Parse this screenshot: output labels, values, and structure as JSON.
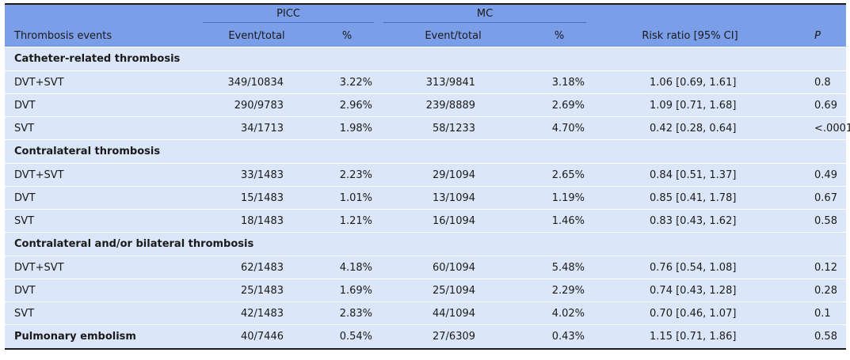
{
  "table": {
    "header": {
      "row_label": "Thrombosis events",
      "group_picc": "PICC",
      "group_mc": "MC",
      "picc_event": "Event/total",
      "picc_pct": "%",
      "mc_event": "Event/total",
      "mc_pct": "%",
      "risk_ratio": "Risk ratio [95% CI]",
      "p": "P"
    },
    "sections": [
      {
        "title": "Catheter-related thrombosis",
        "rows": [
          {
            "label": "DVT+SVT",
            "picc_event": "349/10834",
            "picc_pct": "3.22%",
            "mc_event": "313/9841",
            "mc_pct": "3.18%",
            "rr": "1.06 [0.69, 1.61]",
            "p": "0.8"
          },
          {
            "label": "DVT",
            "picc_event": "290/9783",
            "picc_pct": "2.96%",
            "mc_event": "239/8889",
            "mc_pct": "2.69%",
            "rr": "1.09 [0.71, 1.68]",
            "p": "0.69"
          },
          {
            "label": "SVT",
            "picc_event": "34/1713",
            "picc_pct": "1.98%",
            "mc_event": "58/1233",
            "mc_pct": "4.70%",
            "rr": "0.42 [0.28, 0.64]",
            "p": "<.0001"
          }
        ]
      },
      {
        "title": "Contralateral thrombosis",
        "rows": [
          {
            "label": "DVT+SVT",
            "picc_event": "33/1483",
            "picc_pct": "2.23%",
            "mc_event": "29/1094",
            "mc_pct": "2.65%",
            "rr": "0.84 [0.51, 1.37]",
            "p": "0.49"
          },
          {
            "label": "DVT",
            "picc_event": "15/1483",
            "picc_pct": "1.01%",
            "mc_event": "13/1094",
            "mc_pct": "1.19%",
            "rr": "0.85 [0.41, 1.78]",
            "p": "0.67"
          },
          {
            "label": "SVT",
            "picc_event": "18/1483",
            "picc_pct": "1.21%",
            "mc_event": "16/1094",
            "mc_pct": "1.46%",
            "rr": "0.83 [0.43, 1.62]",
            "p": "0.58"
          }
        ]
      },
      {
        "title": "Contralateral and/or bilateral thrombosis",
        "rows": [
          {
            "label": "DVT+SVT",
            "picc_event": "62/1483",
            "picc_pct": "4.18%",
            "mc_event": "60/1094",
            "mc_pct": "5.48%",
            "rr": "0.76 [0.54, 1.08]",
            "p": "0.12"
          },
          {
            "label": "DVT",
            "picc_event": "25/1483",
            "picc_pct": "1.69%",
            "mc_event": "25/1094",
            "mc_pct": "2.29%",
            "rr": "0.74 [0.43, 1.28]",
            "p": "0.28"
          },
          {
            "label": "SVT",
            "picc_event": "42/1483",
            "picc_pct": "2.83%",
            "mc_event": "44/1094",
            "mc_pct": "4.02%",
            "rr": "0.70 [0.46, 1.07]",
            "p": "0.1"
          }
        ]
      }
    ],
    "final_row": {
      "label": "Pulmonary embolism",
      "picc_event": "40/7446",
      "picc_pct": "0.54%",
      "mc_event": "27/6309",
      "mc_pct": "0.43%",
      "rr": "1.15 [0.71, 1.86]",
      "p": "0.58"
    }
  },
  "colors": {
    "header_bg": "#7b9ee8",
    "row_bg": "#dbe6f8",
    "rule": "#1a1a1a"
  }
}
